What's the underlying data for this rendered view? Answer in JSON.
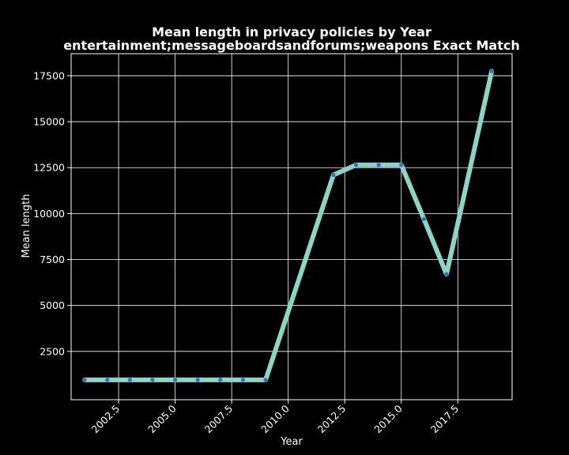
{
  "chart_data": {
    "type": "line",
    "title_line1": "Mean length in privacy policies by Year",
    "title_line2": "entertainment;messageboardsandforums;weapons Exact Match",
    "xlabel": "Year",
    "ylabel": "Mean length",
    "xlim": [
      2000.4,
      2019.9
    ],
    "ylim": [
      -130,
      18700
    ],
    "xticks": [
      2002.5,
      2005.0,
      2007.5,
      2010.0,
      2012.5,
      2015.0,
      2017.5
    ],
    "xtick_labels": [
      "2002.5",
      "2005.0",
      "2007.5",
      "2010.0",
      "2012.5",
      "2015.0",
      "2017.5"
    ],
    "yticks": [
      2500,
      5000,
      7500,
      10000,
      12500,
      15000,
      17500
    ],
    "ytick_labels": [
      "2500",
      "5000",
      "7500",
      "10000",
      "12500",
      "15000",
      "17500"
    ],
    "grid": true,
    "series": [
      {
        "x": [
          2001,
          2002,
          2003,
          2004,
          2005,
          2006,
          2007,
          2008,
          2009,
          2012,
          2013,
          2014,
          2015,
          2016,
          2017,
          2019
        ],
        "values": [
          950,
          950,
          950,
          950,
          950,
          950,
          950,
          950,
          950,
          12100,
          12650,
          12650,
          12650,
          9700,
          6700,
          17750
        ]
      }
    ],
    "colors": {
      "background": "#000000",
      "line": "#8dd3c7",
      "marker": "#3b6fb5",
      "grid": "#ffffff",
      "text": "#ffffff"
    }
  }
}
